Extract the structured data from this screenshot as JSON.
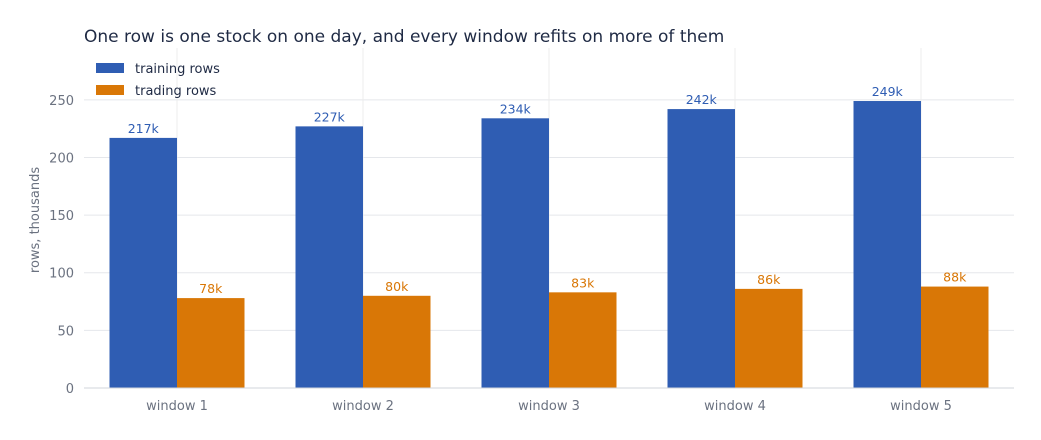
{
  "chart_data": {
    "type": "bar",
    "title": "One row is one stock on one day, and every window refits on more of them",
    "xlabel": "",
    "ylabel": "rows, thousands",
    "ylim": [
      0,
      295
    ],
    "yticks": [
      0,
      50,
      100,
      150,
      200,
      250
    ],
    "grid": true,
    "legend_position": "top-left",
    "categories": [
      "window 1",
      "window 2",
      "window 3",
      "window 4",
      "window 5"
    ],
    "series": [
      {
        "name": "training rows",
        "color": "#2f5db3",
        "values": [
          217,
          227,
          234,
          242,
          249
        ],
        "labels": [
          "217k",
          "227k",
          "234k",
          "242k",
          "249k"
        ]
      },
      {
        "name": "trading rows",
        "color": "#d97706",
        "values": [
          78,
          80,
          83,
          86,
          88
        ],
        "labels": [
          "78k",
          "80k",
          "83k",
          "86k",
          "88k"
        ]
      }
    ]
  }
}
